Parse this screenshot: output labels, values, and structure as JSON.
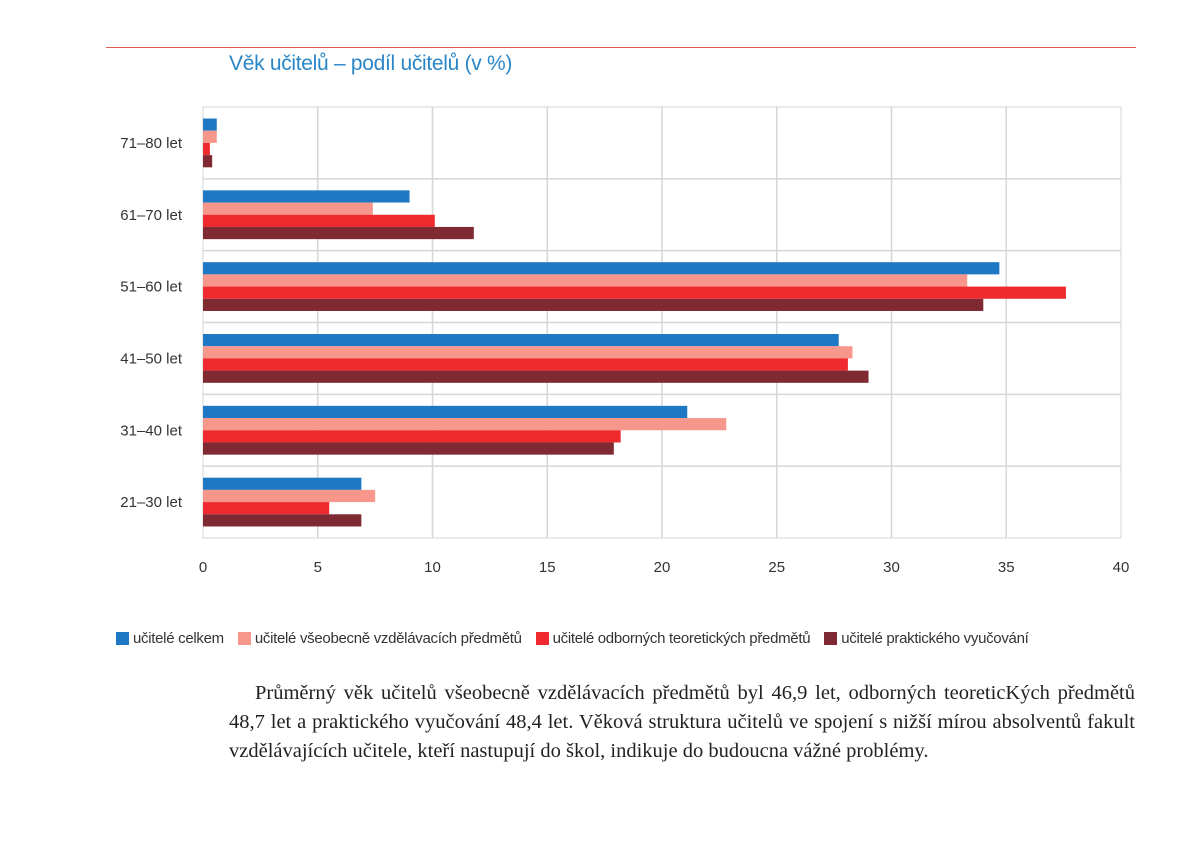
{
  "chart_data": {
    "type": "bar",
    "orientation": "horizontal",
    "title": "Věk učitelů – podíl učitelů (v %)",
    "categories": [
      "71–80 let",
      "61–70 let",
      "51–60 let",
      "41–50 let",
      "31–40 let",
      "21–30 let"
    ],
    "series": [
      {
        "name": "učitelé celkem",
        "color": "#1f78c4",
        "values": [
          0.6,
          9.0,
          34.7,
          27.7,
          21.1,
          6.9
        ]
      },
      {
        "name": "učitelé všeobecně vzdělávacích předmětů",
        "color": "#f7968a",
        "values": [
          0.6,
          7.4,
          33.3,
          28.3,
          22.8,
          7.5
        ]
      },
      {
        "name": "učitelé odborných teoretických předmětů",
        "color": "#ee2a2e",
        "values": [
          0.3,
          10.1,
          37.6,
          28.1,
          18.2,
          5.5
        ]
      },
      {
        "name": "učitelé praktického vyučování",
        "color": "#7f2a33",
        "values": [
          0.4,
          11.8,
          34.0,
          29.0,
          17.9,
          6.9
        ]
      }
    ],
    "xlim": [
      0,
      40
    ],
    "xticks": [
      "0",
      "5",
      "10",
      "15",
      "20",
      "25",
      "30",
      "35",
      "40"
    ],
    "grid": true,
    "legend_position": "bottom"
  },
  "paragraph": "Průměrný věk učitelů všeobecně vzdělávacích předmětů byl 46,9 let, odborných teoreticKých předmětů 48,7 let a praktického vyučování 48,4 let. Věková struktura učitelů ve spojení s nižší mírou absolventů fakult vzdělávajících učitele, kteří nastupují do škol, indikuje do budoucna vážné problémy."
}
